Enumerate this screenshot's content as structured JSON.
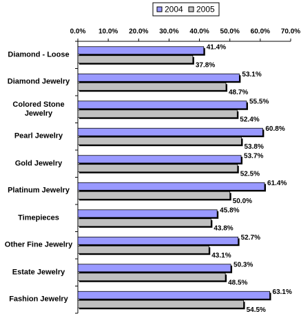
{
  "chart_data": {
    "type": "hbar",
    "categories": [
      "Diamond - Loose",
      "Diamond Jewelry",
      "Colored Stone Jewelry",
      "Pearl Jewelry",
      "Gold Jewelry",
      "Platinum Jewelry",
      "Timepieces",
      "Other Fine Jewelry",
      "Estate Jewelry",
      "Fashion Jewelry"
    ],
    "series": [
      {
        "name": "2004",
        "color": "#9999ff",
        "values": [
          41.4,
          53.1,
          55.5,
          60.8,
          53.7,
          61.4,
          45.8,
          52.7,
          50.3,
          63.1
        ],
        "value_labels": [
          "41.4%",
          "53.1%",
          "55.5%",
          "60.8%",
          "53.7%",
          "61.4%",
          "45.8%",
          "52.7%",
          "50.3%",
          "63.1%"
        ]
      },
      {
        "name": "2005",
        "color": "#c0c0c0",
        "values": [
          37.8,
          48.7,
          52.4,
          53.8,
          52.5,
          50.0,
          43.8,
          43.1,
          48.5,
          54.5
        ],
        "value_labels": [
          "37.8%",
          "48.7%",
          "52.4%",
          "53.8%",
          "52.5%",
          "50.0%",
          "43.8%",
          "43.1%",
          "48.5%",
          "54.5%"
        ]
      }
    ],
    "xlim": [
      0,
      70
    ],
    "xticks": [
      {
        "value": 0,
        "label": "0.0%"
      },
      {
        "value": 10,
        "label": "10.0%"
      },
      {
        "value": 20,
        "label": "20.0%"
      },
      {
        "value": 30,
        "label": "30.0%"
      },
      {
        "value": 40,
        "label": "40.0%"
      },
      {
        "value": 50,
        "label": "50.0%"
      },
      {
        "value": 60,
        "label": "60.0%"
      },
      {
        "value": 70,
        "label": "70.0%"
      }
    ],
    "legend": "top"
  }
}
